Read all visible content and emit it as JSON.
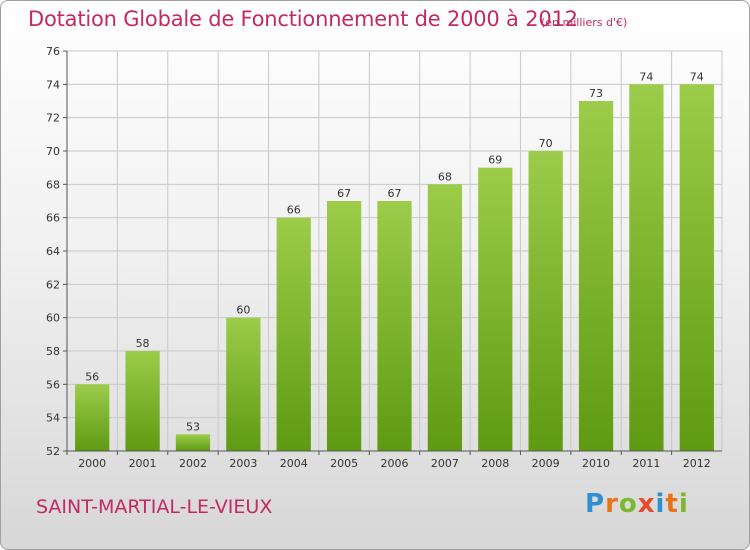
{
  "chart_data": {
    "type": "bar",
    "title": "Dotation Globale de Fonctionnement de 2000 à 2012",
    "subtitle": "(en milliers d'€)",
    "categories": [
      "2000",
      "2001",
      "2002",
      "2003",
      "2004",
      "2005",
      "2006",
      "2007",
      "2008",
      "2009",
      "2010",
      "2011",
      "2012"
    ],
    "values": [
      56,
      58,
      53,
      60,
      66,
      67,
      67,
      68,
      69,
      70,
      73,
      74,
      74
    ],
    "ylim": [
      52,
      76
    ],
    "yticks": [
      52,
      54,
      56,
      58,
      60,
      62,
      64,
      66,
      68,
      70,
      72,
      74,
      76
    ],
    "xlabel": "",
    "ylabel": "",
    "grid": true,
    "bar_color_top": "#9ccc4a",
    "bar_color_bottom": "#5e9a12"
  },
  "commune_name": "SAINT-MARTIAL-LE-VIEUX",
  "logo": {
    "text": "Proxiti",
    "letters": [
      {
        "char": "P",
        "color": "#2f8fd0"
      },
      {
        "char": "r",
        "color": "#e8741a"
      },
      {
        "char": "o",
        "color": "#7cb82f"
      },
      {
        "char": "x",
        "color": "#e84a2a"
      },
      {
        "char": "i",
        "color": "#2f8fd0"
      },
      {
        "char": "t",
        "color": "#e8741a"
      },
      {
        "char": "i",
        "color": "#7cb82f"
      }
    ]
  },
  "colors": {
    "accent": "#c42a62",
    "grid": "#c8c8c8",
    "axis": "#555555"
  }
}
